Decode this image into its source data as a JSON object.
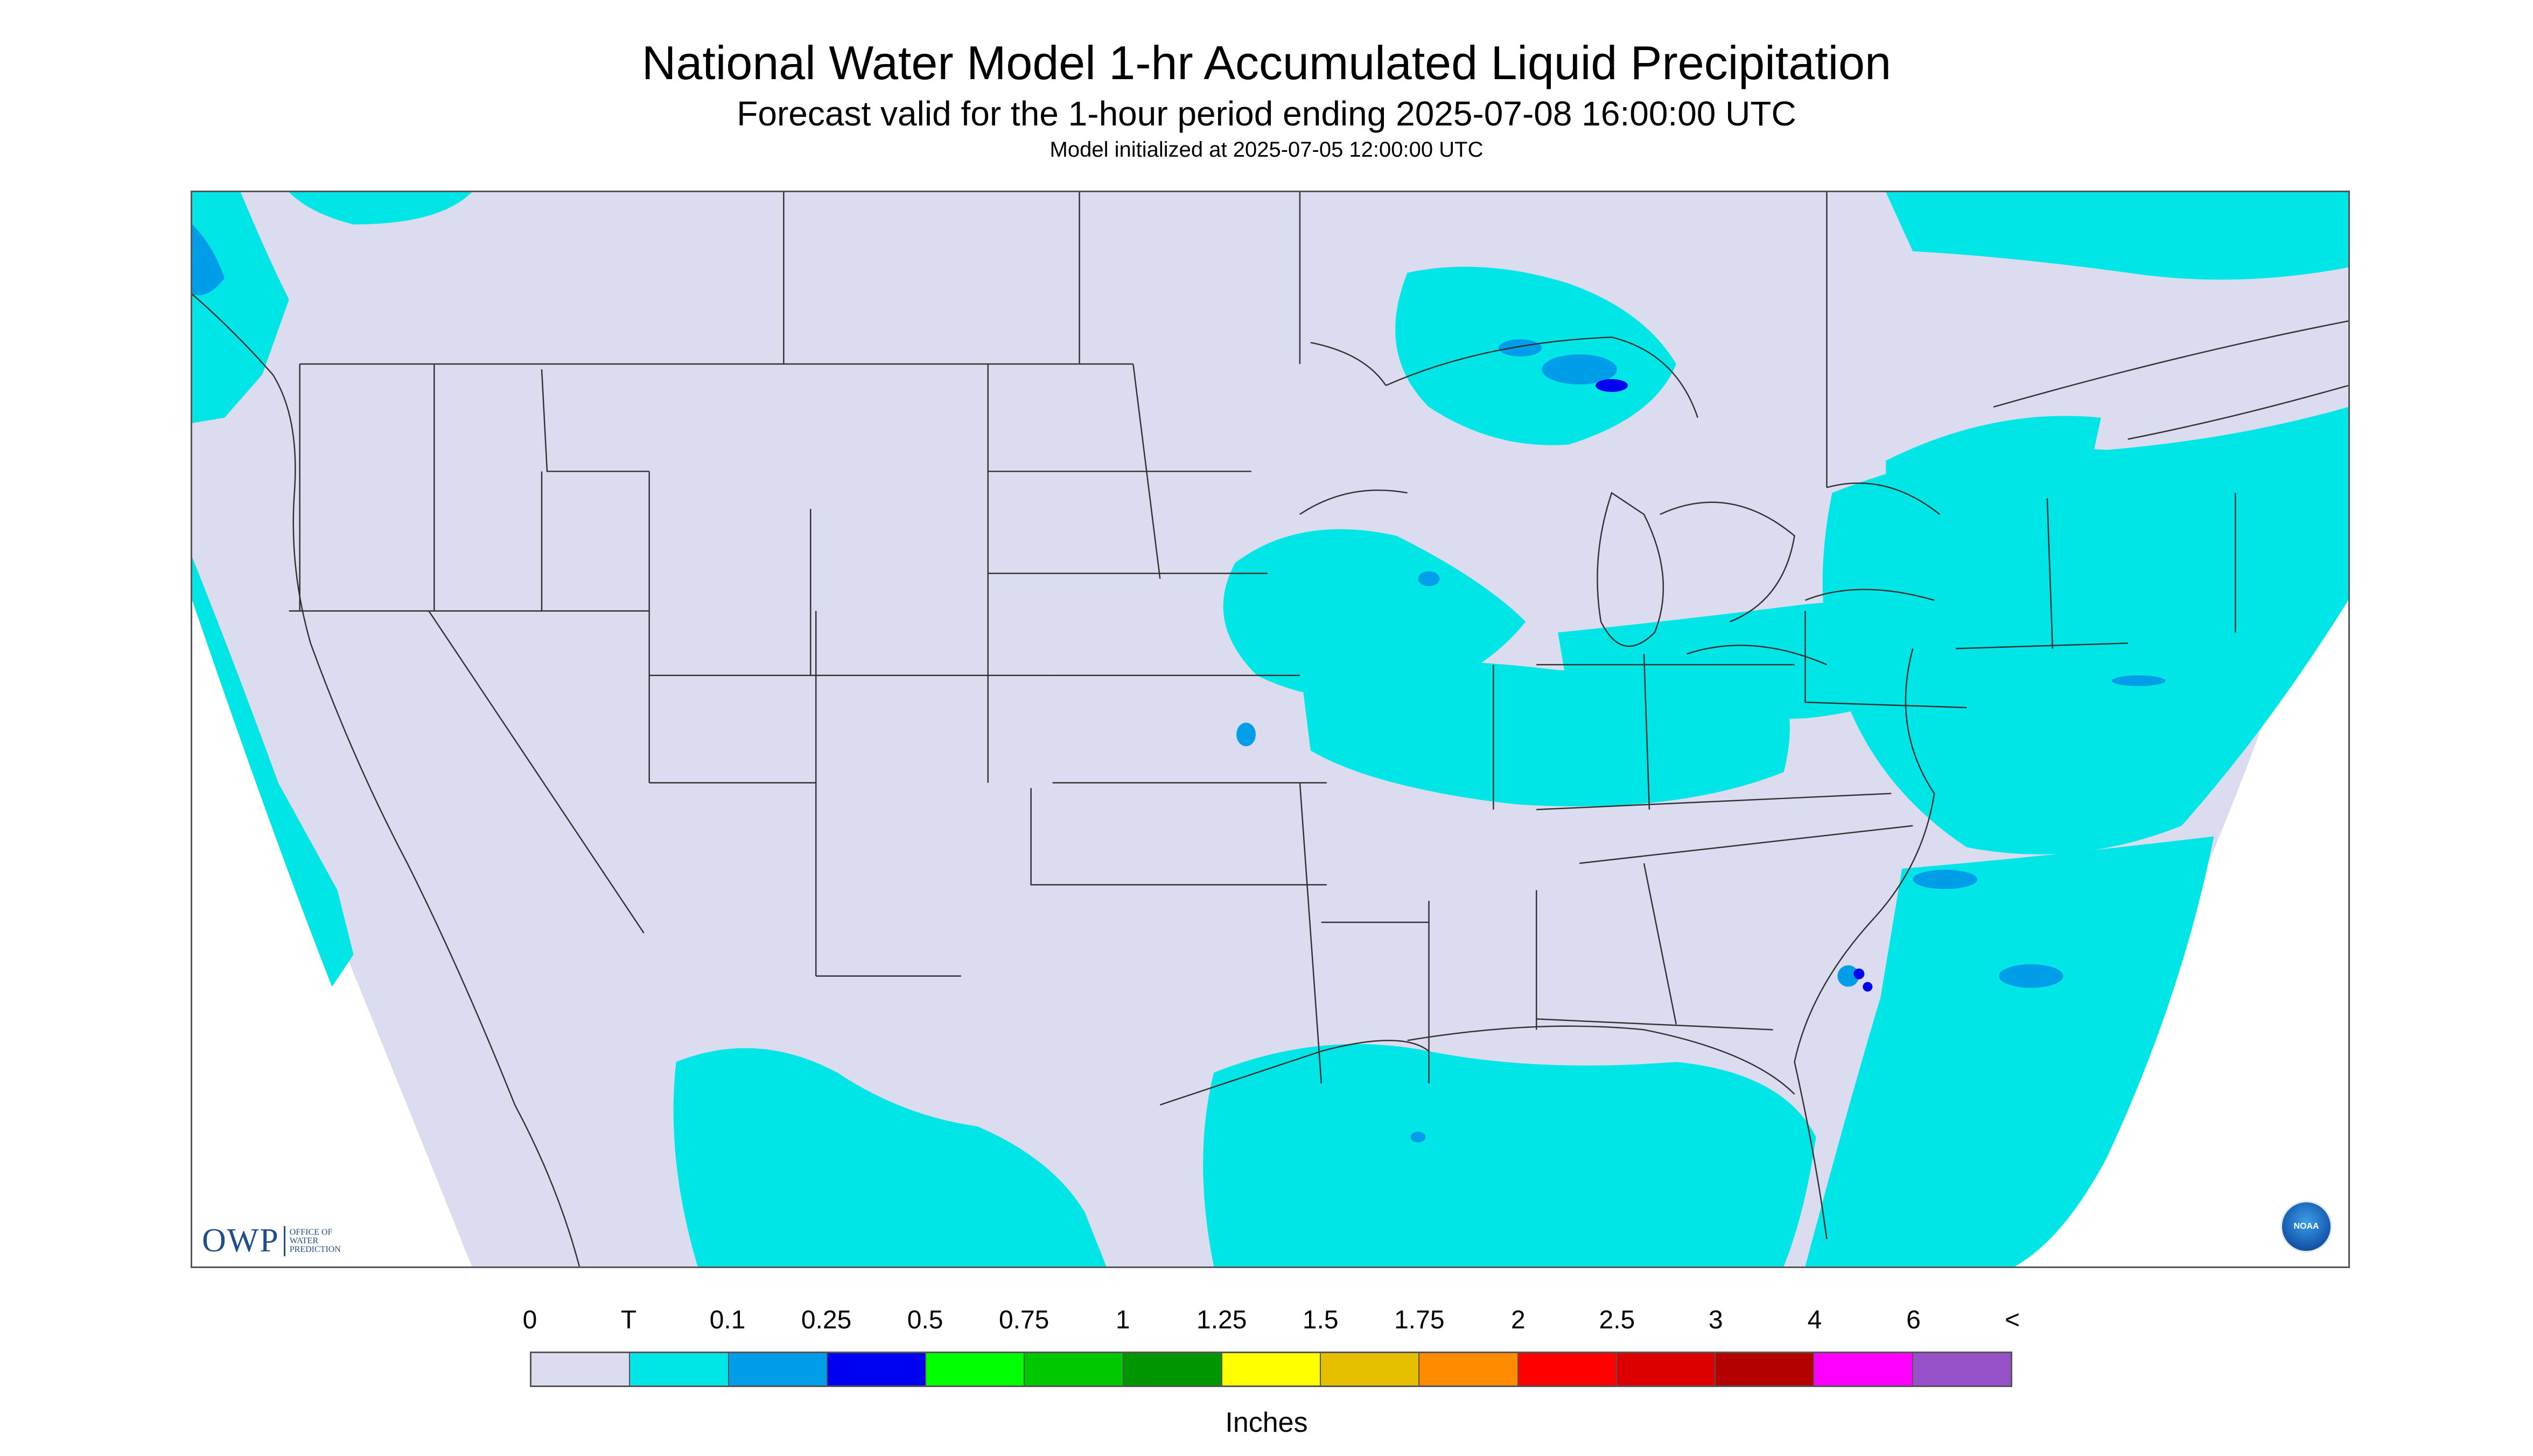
{
  "title": "National Water Model 1-hr Accumulated Liquid Precipitation",
  "subtitle": "Forecast valid for the 1-hour period ending 2025-07-08 16:00:00 UTC",
  "init_line": "Model initialized at 2025-07-05 12:00:00 UTC",
  "map": {
    "background_color": "#ffffff",
    "land_color": "#dcdcf0",
    "precip_light_color": "#00e6e6",
    "precip_medium_color": "#009ee8",
    "precip_heavy_color": "#0000f0",
    "border_color": "#333333"
  },
  "logos": {
    "owp_mark": "OWP",
    "owp_text": "OFFICE OF WATER PREDICTION",
    "noaa_text": "NOAA"
  },
  "legend": {
    "tick_labels": [
      "0",
      "T",
      "0.1",
      "0.25",
      "0.5",
      "0.75",
      "1",
      "1.25",
      "1.5",
      "1.75",
      "2",
      "2.5",
      "3",
      "4",
      "6",
      "<"
    ],
    "colors": [
      "#dcdcf0",
      "#00e6e6",
      "#009ee8",
      "#0000f0",
      "#00ff00",
      "#00c800",
      "#009600",
      "#ffff00",
      "#e6be00",
      "#ff8c00",
      "#ff0000",
      "#dc0000",
      "#b40000",
      "#ff00ff",
      "#9650c8"
    ],
    "unit_label": "Inches"
  }
}
